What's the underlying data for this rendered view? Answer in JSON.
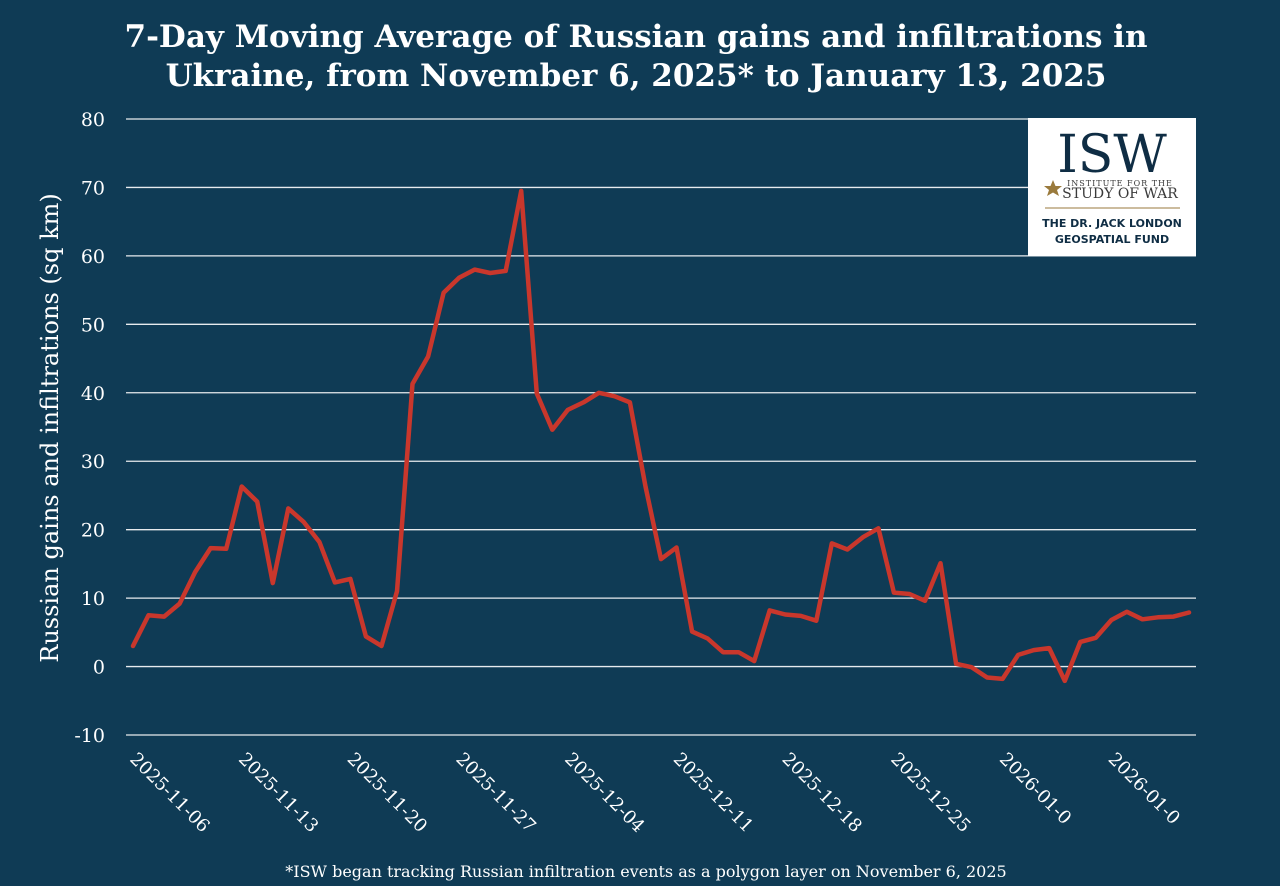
{
  "chart_data": {
    "type": "line",
    "title_lines": [
      "7-Day Moving Average of Russian gains and infiltrations in",
      "Ukraine, from November 6, 2025* to January 13, 2025"
    ],
    "ylabel": "Russian gains and infiltrations (sq km)",
    "xlabel": "",
    "ylim": [
      -10,
      80
    ],
    "yticks": [
      80,
      70,
      60,
      50,
      40,
      30,
      20,
      10,
      0,
      -10
    ],
    "grid": true,
    "x_tick_labels": [
      "2025-11-06",
      "2025-11-13",
      "2025-11-20",
      "2025-11-27",
      "2025-12-04",
      "2025-12-11",
      "2025-12-18",
      "2025-12-25",
      "2026-01-0",
      "2026-01-0"
    ],
    "x_tick_index": [
      0,
      7,
      14,
      21,
      28,
      35,
      42,
      49,
      56,
      63
    ],
    "x_count": 69,
    "series": [
      {
        "name": "7-Day Moving Average",
        "color": "#c9372c",
        "values": [
          3,
          7.5,
          7.3,
          9.2,
          13.8,
          17.3,
          17.2,
          26.3,
          24.1,
          12.2,
          23.1,
          21.1,
          18.2,
          12.3,
          12.8,
          4.4,
          3,
          11,
          41.3,
          45.3,
          54.6,
          56.8,
          58,
          57.5,
          57.8,
          69.5,
          39.9,
          34.6,
          37.5,
          38.6,
          40,
          39.5,
          38.6,
          26.3,
          15.7,
          17.4,
          5.1,
          4.1,
          2.1,
          2.1,
          0.8,
          8.2,
          7.6,
          7.4,
          6.7,
          18,
          17.1,
          18.9,
          20.2,
          10.8,
          10.6,
          9.6,
          15.1,
          0.4,
          -0.1,
          -1.6,
          -1.8,
          1.7,
          2.4,
          2.7,
          -2.1,
          3.6,
          4.2,
          6.8,
          8,
          6.9,
          7.2,
          7.3,
          7.9
        ]
      }
    ]
  },
  "logo": {
    "isw": "ISW",
    "institute_line": "INSTITUTE FOR THE",
    "sow_line": "STUDY OF WAR",
    "fund_line1": "THE DR. JACK LONDON",
    "fund_line2": "GEOSPATIAL FUND"
  },
  "footnote": "*ISW began tracking Russian infiltration events as a polygon layer on November 6, 2025"
}
